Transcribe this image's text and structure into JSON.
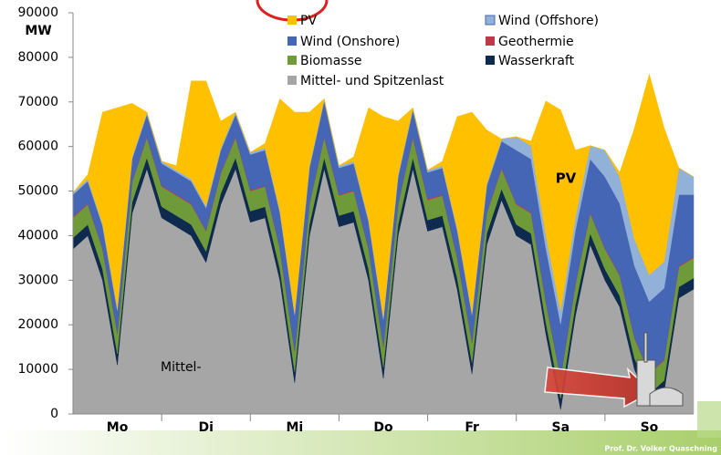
{
  "chart_data": {
    "type": "area",
    "stacked": true,
    "y_label": "MW",
    "annotations": [
      "PV",
      "Mittel-"
    ],
    "footer": "Prof. Dr. Volker Quaschning",
    "x": [
      0,
      4,
      8,
      12,
      16,
      20,
      24,
      28,
      32,
      36,
      40,
      44,
      48,
      52,
      56,
      60,
      64,
      68,
      72,
      76,
      80,
      84,
      88,
      92,
      96,
      100,
      104,
      108,
      112,
      116,
      120,
      124,
      128,
      132,
      136,
      140,
      144,
      148,
      152,
      156,
      160,
      164,
      168
    ],
    "xlim": [
      0,
      168
    ],
    "xticks": [
      {
        "value": 12,
        "label": "Mo"
      },
      {
        "value": 36,
        "label": "Di"
      },
      {
        "value": 60,
        "label": "Mi"
      },
      {
        "value": 84,
        "label": "Do"
      },
      {
        "value": 108,
        "label": "Fr"
      },
      {
        "value": 132,
        "label": "Sa"
      },
      {
        "value": 156,
        "label": "So"
      }
    ],
    "ylim": [
      0,
      90000
    ],
    "yticks": [
      0,
      10000,
      20000,
      30000,
      40000,
      50000,
      60000,
      70000,
      80000,
      90000
    ],
    "series": [
      {
        "name": "Mittel- und Spitzenlast",
        "color": "#a6a6a6",
        "values": [
          37000,
          40000,
          30000,
          11000,
          45000,
          55000,
          44000,
          42000,
          40000,
          34000,
          47000,
          55000,
          43000,
          44000,
          30000,
          7000,
          40000,
          55000,
          42000,
          43000,
          30000,
          8000,
          40000,
          55000,
          41000,
          42000,
          28000,
          9000,
          38000,
          48000,
          40000,
          38000,
          18000,
          1000,
          22000,
          38000,
          30000,
          24000,
          10000,
          2000,
          5000,
          26000,
          28000
        ]
      },
      {
        "name": "Wasserkraft",
        "color": "#0f2a4f",
        "values": [
          2500,
          2500,
          2500,
          2500,
          2500,
          2500,
          2500,
          2500,
          2500,
          2500,
          2500,
          2500,
          2500,
          2500,
          2500,
          2500,
          2500,
          2500,
          2500,
          2500,
          2500,
          2500,
          2500,
          2500,
          2500,
          2500,
          2500,
          2500,
          2500,
          2500,
          2500,
          2500,
          2500,
          2500,
          2500,
          2500,
          2500,
          2500,
          2500,
          2500,
          2500,
          2500,
          2500
        ]
      },
      {
        "name": "Biomasse",
        "color": "#6e9a3a",
        "values": [
          4500,
          4500,
          4500,
          4500,
          4500,
          4500,
          4500,
          4500,
          4500,
          4500,
          4500,
          4500,
          4500,
          4500,
          4500,
          4500,
          4500,
          4500,
          4500,
          4500,
          4500,
          4500,
          4500,
          4500,
          4500,
          4500,
          4500,
          4500,
          4500,
          4500,
          4500,
          4500,
          4500,
          4500,
          4500,
          4500,
          4500,
          4500,
          4500,
          4500,
          4500,
          4500,
          4500
        ]
      },
      {
        "name": "Geothermie",
        "color": "#c0394a",
        "values": [
          200,
          200,
          200,
          200,
          200,
          200,
          200,
          200,
          200,
          200,
          200,
          200,
          200,
          200,
          200,
          200,
          200,
          200,
          200,
          200,
          200,
          200,
          200,
          200,
          200,
          200,
          200,
          200,
          200,
          200,
          200,
          200,
          200,
          200,
          200,
          200,
          200,
          200,
          200,
          200,
          200,
          200,
          200
        ]
      },
      {
        "name": "Wind (Onshore)",
        "color": "#4565b5",
        "values": [
          5000,
          5000,
          5000,
          5000,
          5000,
          5000,
          5000,
          5000,
          5000,
          5000,
          5000,
          5000,
          8000,
          8000,
          8000,
          8000,
          8000,
          8000,
          6000,
          6000,
          6000,
          6000,
          6000,
          6000,
          6000,
          6000,
          6000,
          6000,
          6000,
          6000,
          12000,
          12000,
          12000,
          12000,
          12000,
          12000,
          16000,
          16000,
          16000,
          16000,
          16000,
          16000,
          14000
        ]
      },
      {
        "name": "Wind (Offshore)",
        "color": "#92b1d8",
        "values": [
          500,
          500,
          500,
          500,
          500,
          500,
          500,
          500,
          500,
          500,
          500,
          500,
          500,
          500,
          500,
          500,
          500,
          500,
          500,
          500,
          500,
          500,
          500,
          500,
          500,
          500,
          500,
          500,
          500,
          500,
          3000,
          3000,
          3000,
          3000,
          3000,
          3000,
          6000,
          6000,
          6000,
          6000,
          6000,
          6000,
          4000
        ]
      },
      {
        "name": "PV",
        "color": "#ffc000",
        "values": [
          0,
          1000,
          25000,
          45000,
          12000,
          0,
          0,
          1000,
          22000,
          28000,
          6000,
          0,
          0,
          1000,
          25000,
          45000,
          12000,
          0,
          0,
          1000,
          25000,
          45000,
          12000,
          0,
          0,
          1000,
          25000,
          45000,
          12000,
          0,
          0,
          1000,
          30000,
          45000,
          15000,
          0,
          0,
          1000,
          25000,
          45000,
          30000,
          0,
          0
        ]
      }
    ]
  }
}
